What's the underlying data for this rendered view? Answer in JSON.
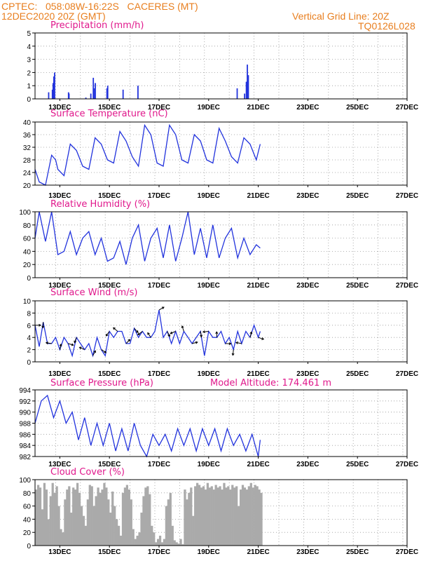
{
  "header": {
    "line1": "CPTEC:   058:08W-16:22S   CACERES (MT)",
    "line2_left": "12DEC2020 20Z (GMT)",
    "line2_right": "Vertical Grid Line: 20Z",
    "line3_right": "TQ0126L028"
  },
  "x_ticks": [
    "13DEC",
    "15DEC",
    "17DEC",
    "19DEC",
    "21DEC",
    "23DEC",
    "25DEC",
    "27DEC"
  ],
  "colors": {
    "line": "#2233dd",
    "bar": "#2233dd",
    "cloud": "#aaaaaa",
    "title": "#e0188c",
    "header": "#e87e1e"
  },
  "chart_data": [
    {
      "type": "bar",
      "title": "Precipitation (mm/h)",
      "ylim": [
        0,
        5
      ],
      "yticks": [
        0,
        1,
        2,
        3,
        4,
        5
      ],
      "x_unit": "day_index_from_12DEC_00Z",
      "x": [
        0.55,
        0.7,
        0.73,
        0.76,
        0.79,
        1.35,
        1.37,
        2.05,
        2.25,
        2.35,
        2.38,
        2.43,
        2.9,
        2.93,
        3.55,
        4.15,
        8.15,
        8.45,
        8.52,
        8.56,
        8.6
      ],
      "values": [
        0.5,
        0.7,
        1.2,
        1.7,
        2.0,
        0.5,
        0.4,
        0.1,
        0.4,
        1.6,
        0.8,
        1.2,
        0.8,
        1.0,
        0.7,
        1.0,
        0.8,
        0.4,
        1.3,
        2.6,
        1.8
      ]
    },
    {
      "type": "line",
      "title": "Surface Temperature (nC)",
      "ylim": [
        20,
        40
      ],
      "yticks": [
        20,
        24,
        28,
        32,
        36,
        40
      ],
      "x": [
        0.0,
        0.17,
        0.42,
        0.67,
        0.83,
        0.92,
        1.17,
        1.42,
        1.67,
        1.92,
        2.17,
        2.42,
        2.67,
        2.92,
        3.17,
        3.42,
        3.67,
        3.92,
        4.17,
        4.42,
        4.67,
        4.92,
        5.17,
        5.42,
        5.67,
        5.92,
        6.17,
        6.42,
        6.67,
        6.92,
        7.17,
        7.42,
        7.67,
        7.92,
        8.17,
        8.42,
        8.67,
        8.92,
        9.08
      ],
      "values": [
        25,
        21,
        20,
        29.5,
        28,
        25,
        23,
        33,
        31,
        26,
        25,
        35,
        33,
        28,
        27,
        37,
        34,
        29,
        26,
        39,
        36,
        27,
        26,
        39,
        36,
        28,
        27,
        36,
        34,
        28,
        27,
        38,
        34,
        29,
        27,
        35,
        33,
        28,
        33
      ]
    },
    {
      "type": "line",
      "title": "Relative Humidity (%)",
      "ylim": [
        0,
        100
      ],
      "yticks": [
        0,
        20,
        40,
        60,
        80,
        100
      ],
      "x": [
        0.0,
        0.17,
        0.42,
        0.67,
        0.92,
        1.17,
        1.42,
        1.67,
        1.92,
        2.17,
        2.42,
        2.67,
        2.92,
        3.17,
        3.42,
        3.67,
        3.92,
        4.17,
        4.42,
        4.67,
        4.92,
        5.17,
        5.42,
        5.67,
        5.92,
        6.17,
        6.42,
        6.67,
        6.92,
        7.17,
        7.42,
        7.67,
        7.92,
        8.17,
        8.42,
        8.67,
        8.92,
        9.08
      ],
      "values": [
        60,
        100,
        55,
        100,
        35,
        40,
        70,
        35,
        60,
        70,
        35,
        60,
        25,
        30,
        55,
        20,
        60,
        80,
        25,
        60,
        75,
        30,
        80,
        25,
        60,
        100,
        35,
        75,
        30,
        80,
        30,
        60,
        75,
        30,
        60,
        35,
        50,
        45
      ]
    },
    {
      "type": "line",
      "title": "Surface Wind (m/s)",
      "ylim": [
        0,
        10
      ],
      "yticks": [
        0,
        2,
        4,
        6,
        8,
        10
      ],
      "x": [
        0.0,
        0.17,
        0.33,
        0.5,
        0.67,
        0.83,
        1.0,
        1.17,
        1.33,
        1.5,
        1.67,
        1.83,
        2.0,
        2.17,
        2.33,
        2.5,
        2.67,
        2.83,
        3.0,
        3.17,
        3.33,
        3.5,
        3.67,
        3.83,
        4.0,
        4.17,
        4.33,
        4.5,
        4.67,
        4.83,
        5.0,
        5.17,
        5.33,
        5.5,
        5.67,
        5.83,
        6.0,
        6.17,
        6.33,
        6.5,
        6.67,
        6.83,
        7.0,
        7.17,
        7.33,
        7.5,
        7.67,
        7.83,
        8.0,
        8.17,
        8.33,
        8.5,
        8.67,
        8.83,
        9.0,
        9.08
      ],
      "values": [
        6,
        2.5,
        6.5,
        3,
        3,
        4,
        2,
        4,
        3,
        1,
        4,
        3,
        2,
        3,
        1,
        4,
        2,
        1,
        5,
        4,
        5,
        5,
        3,
        3,
        5.5,
        4,
        5,
        4,
        4,
        5,
        8.5,
        4,
        5,
        3,
        5,
        3,
        5,
        4,
        3,
        4,
        5,
        1,
        5,
        4,
        4,
        5,
        3,
        4,
        2,
        5,
        3,
        5,
        4,
        6,
        4,
        5
      ]
    },
    {
      "type": "line",
      "title": "Surface Pressure (hPa)",
      "subtitle": "Model Altitude: 174.461 m",
      "ylim": [
        982,
        994
      ],
      "yticks": [
        982,
        984,
        986,
        988,
        990,
        992,
        994
      ],
      "x": [
        0.0,
        0.25,
        0.5,
        0.75,
        1.0,
        1.25,
        1.5,
        1.75,
        2.0,
        2.25,
        2.5,
        2.75,
        3.0,
        3.25,
        3.5,
        3.75,
        4.0,
        4.25,
        4.5,
        4.75,
        5.0,
        5.25,
        5.5,
        5.75,
        6.0,
        6.25,
        6.5,
        6.75,
        7.0,
        7.25,
        7.5,
        7.75,
        8.0,
        8.25,
        8.5,
        8.75,
        9.0,
        9.08
      ],
      "values": [
        988,
        992,
        993,
        989,
        992,
        988,
        990,
        985,
        989,
        984,
        988,
        984,
        988,
        983,
        987,
        983,
        988,
        984,
        982,
        986,
        984,
        986,
        983,
        987,
        984,
        987,
        983,
        987,
        984,
        987,
        983,
        987,
        984,
        986,
        983,
        986,
        982,
        985
      ]
    },
    {
      "type": "bar",
      "title": "Cloud Cover (%)",
      "ylim": [
        0,
        100
      ],
      "yticks": [
        0,
        20,
        40,
        60,
        80,
        100
      ],
      "x_step_days": 0.0833,
      "values": [
        85,
        92,
        88,
        55,
        95,
        85,
        40,
        75,
        95,
        80,
        90,
        60,
        25,
        20,
        70,
        85,
        90,
        50,
        88,
        85,
        95,
        80,
        60,
        45,
        30,
        70,
        92,
        90,
        60,
        75,
        88,
        80,
        85,
        95,
        88,
        70,
        50,
        82,
        60,
        40,
        30,
        15,
        80,
        88,
        92,
        85,
        70,
        25,
        10,
        15,
        20,
        50,
        75,
        88,
        90,
        78,
        30,
        20,
        5,
        10,
        15,
        5,
        10,
        60,
        70,
        80,
        30,
        8,
        5,
        3,
        10,
        2,
        85,
        70,
        80,
        88,
        45,
        90,
        95,
        92,
        88,
        90,
        85,
        95,
        88,
        90,
        85,
        92,
        88,
        90,
        85,
        95,
        88,
        90,
        85,
        92,
        88,
        90,
        60,
        85,
        92,
        88,
        85,
        90,
        95,
        88,
        92,
        90,
        85,
        80
      ]
    }
  ]
}
